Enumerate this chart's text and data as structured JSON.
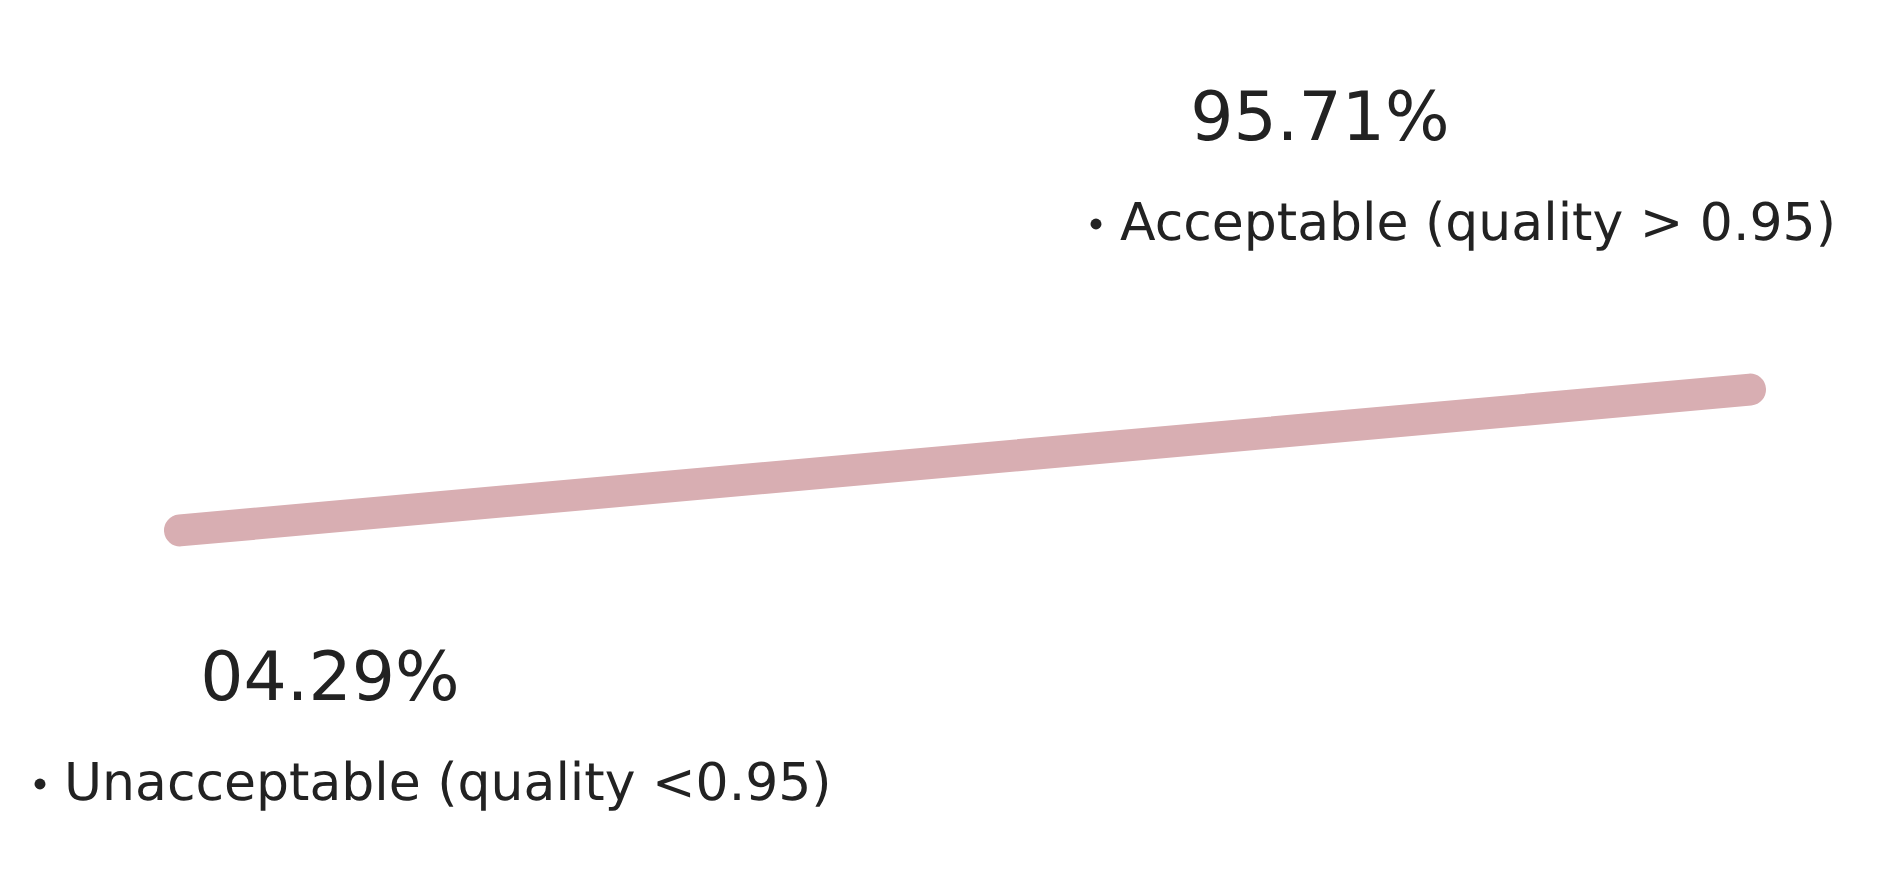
{
  "chart_data": {
    "type": "other",
    "categories": [
      "Unacceptable (quality <0.95)",
      "Acceptable (quality > 0.95)"
    ],
    "values": [
      4.29,
      95.71
    ],
    "value_labels": [
      "04.29%",
      "95.71%"
    ]
  }
}
